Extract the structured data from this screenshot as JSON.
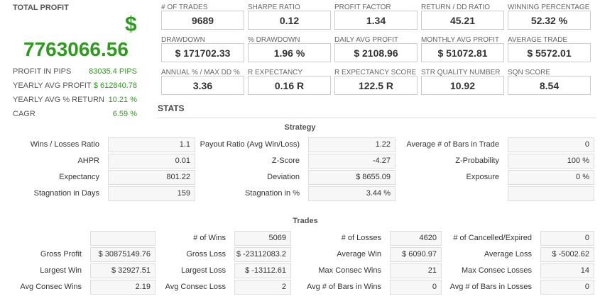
{
  "summary": {
    "title": "TOTAL PROFIT",
    "currency": "$",
    "total": "7763066.56",
    "rows": [
      {
        "label": "PROFIT IN PIPS",
        "value": "83035.4 PIPS"
      },
      {
        "label": "YEARLY AVG PROFIT",
        "value": "$ 612840.78"
      },
      {
        "label": "YEARLY AVG % RETURN",
        "value": "10.21 %"
      },
      {
        "label": "CAGR",
        "value": "6.59 %"
      }
    ]
  },
  "metrics": [
    [
      {
        "label": "# OF TRADES",
        "value": "9689"
      },
      {
        "label": "SHARPE RATIO",
        "value": "0.12"
      },
      {
        "label": "PROFIT FACTOR",
        "value": "1.34"
      },
      {
        "label": "RETURN / DD RATIO",
        "value": "45.21"
      },
      {
        "label": "WINNING PERCENTAGE",
        "value": "52.32 %"
      }
    ],
    [
      {
        "label": "DRAWDOWN",
        "value": "$ 171702.33"
      },
      {
        "label": "% DRAWDOWN",
        "value": "1.96 %"
      },
      {
        "label": "DAILY AVG PROFIT",
        "value": "$ 2108.96"
      },
      {
        "label": "MONTHLY AVG PROFIT",
        "value": "$ 51072.81"
      },
      {
        "label": "AVERAGE TRADE",
        "value": "$ 5572.01"
      }
    ],
    [
      {
        "label": "ANNUAL % / MAX DD %",
        "value": "3.36"
      },
      {
        "label": "R EXPECTANCY",
        "value": "0.16 R"
      },
      {
        "label": "R EXPECTANCY SCORE",
        "value": "122.5 R"
      },
      {
        "label": "STR QUALITY NUMBER",
        "value": "10.92"
      },
      {
        "label": "SQN SCORE",
        "value": "8.54"
      }
    ]
  ],
  "stats": {
    "title": "STATS",
    "strategy": {
      "title": "Strategy",
      "rows": [
        [
          {
            "label": "Wins / Losses Ratio",
            "value": "1.1"
          },
          {
            "label": "Payout Ratio (Avg Win/Loss)",
            "value": "1.22"
          },
          {
            "label": "Average # of Bars in Trade",
            "value": "0"
          }
        ],
        [
          {
            "label": "AHPR",
            "value": "0.01"
          },
          {
            "label": "Z-Score",
            "value": "-4.27"
          },
          {
            "label": "Z-Probability",
            "value": "100 %"
          }
        ],
        [
          {
            "label": "Expectancy",
            "value": "801.22"
          },
          {
            "label": "Deviation",
            "value": "$ 8655.09"
          },
          {
            "label": "Exposure",
            "value": "0 %"
          }
        ],
        [
          {
            "label": "Stagnation in Days",
            "value": "159"
          },
          {
            "label": "Stagnation in %",
            "value": "3.44 %"
          }
        ]
      ]
    },
    "trades": {
      "title": "Trades",
      "rows": [
        [
          {
            "label": "# of Wins",
            "value": "5069"
          },
          {
            "label": "# of Losses",
            "value": "4620"
          },
          {
            "label": "# of Cancelled/Expired",
            "value": "0"
          }
        ],
        [
          {
            "label": "Gross Profit",
            "value": "$ 30875149.76"
          },
          {
            "label": "Gross Loss",
            "value": "$ -23112083.2"
          },
          {
            "label": "Average Win",
            "value": "$ 6090.97"
          },
          {
            "label": "Average Loss",
            "value": "$ -5002.62"
          }
        ],
        [
          {
            "label": "Largest Win",
            "value": "$ 32927.51"
          },
          {
            "label": "Largest Loss",
            "value": "$ -13112.61"
          },
          {
            "label": "Max Consec Wins",
            "value": "21"
          },
          {
            "label": "Max Consec Losses",
            "value": "14"
          }
        ],
        [
          {
            "label": "Avg Consec Wins",
            "value": "2.19"
          },
          {
            "label": "Avg Consec Loss",
            "value": "2"
          },
          {
            "label": "Avg # of Bars in Wins",
            "value": "0"
          },
          {
            "label": "Avg # of Bars in Losses",
            "value": "0"
          }
        ]
      ]
    }
  }
}
